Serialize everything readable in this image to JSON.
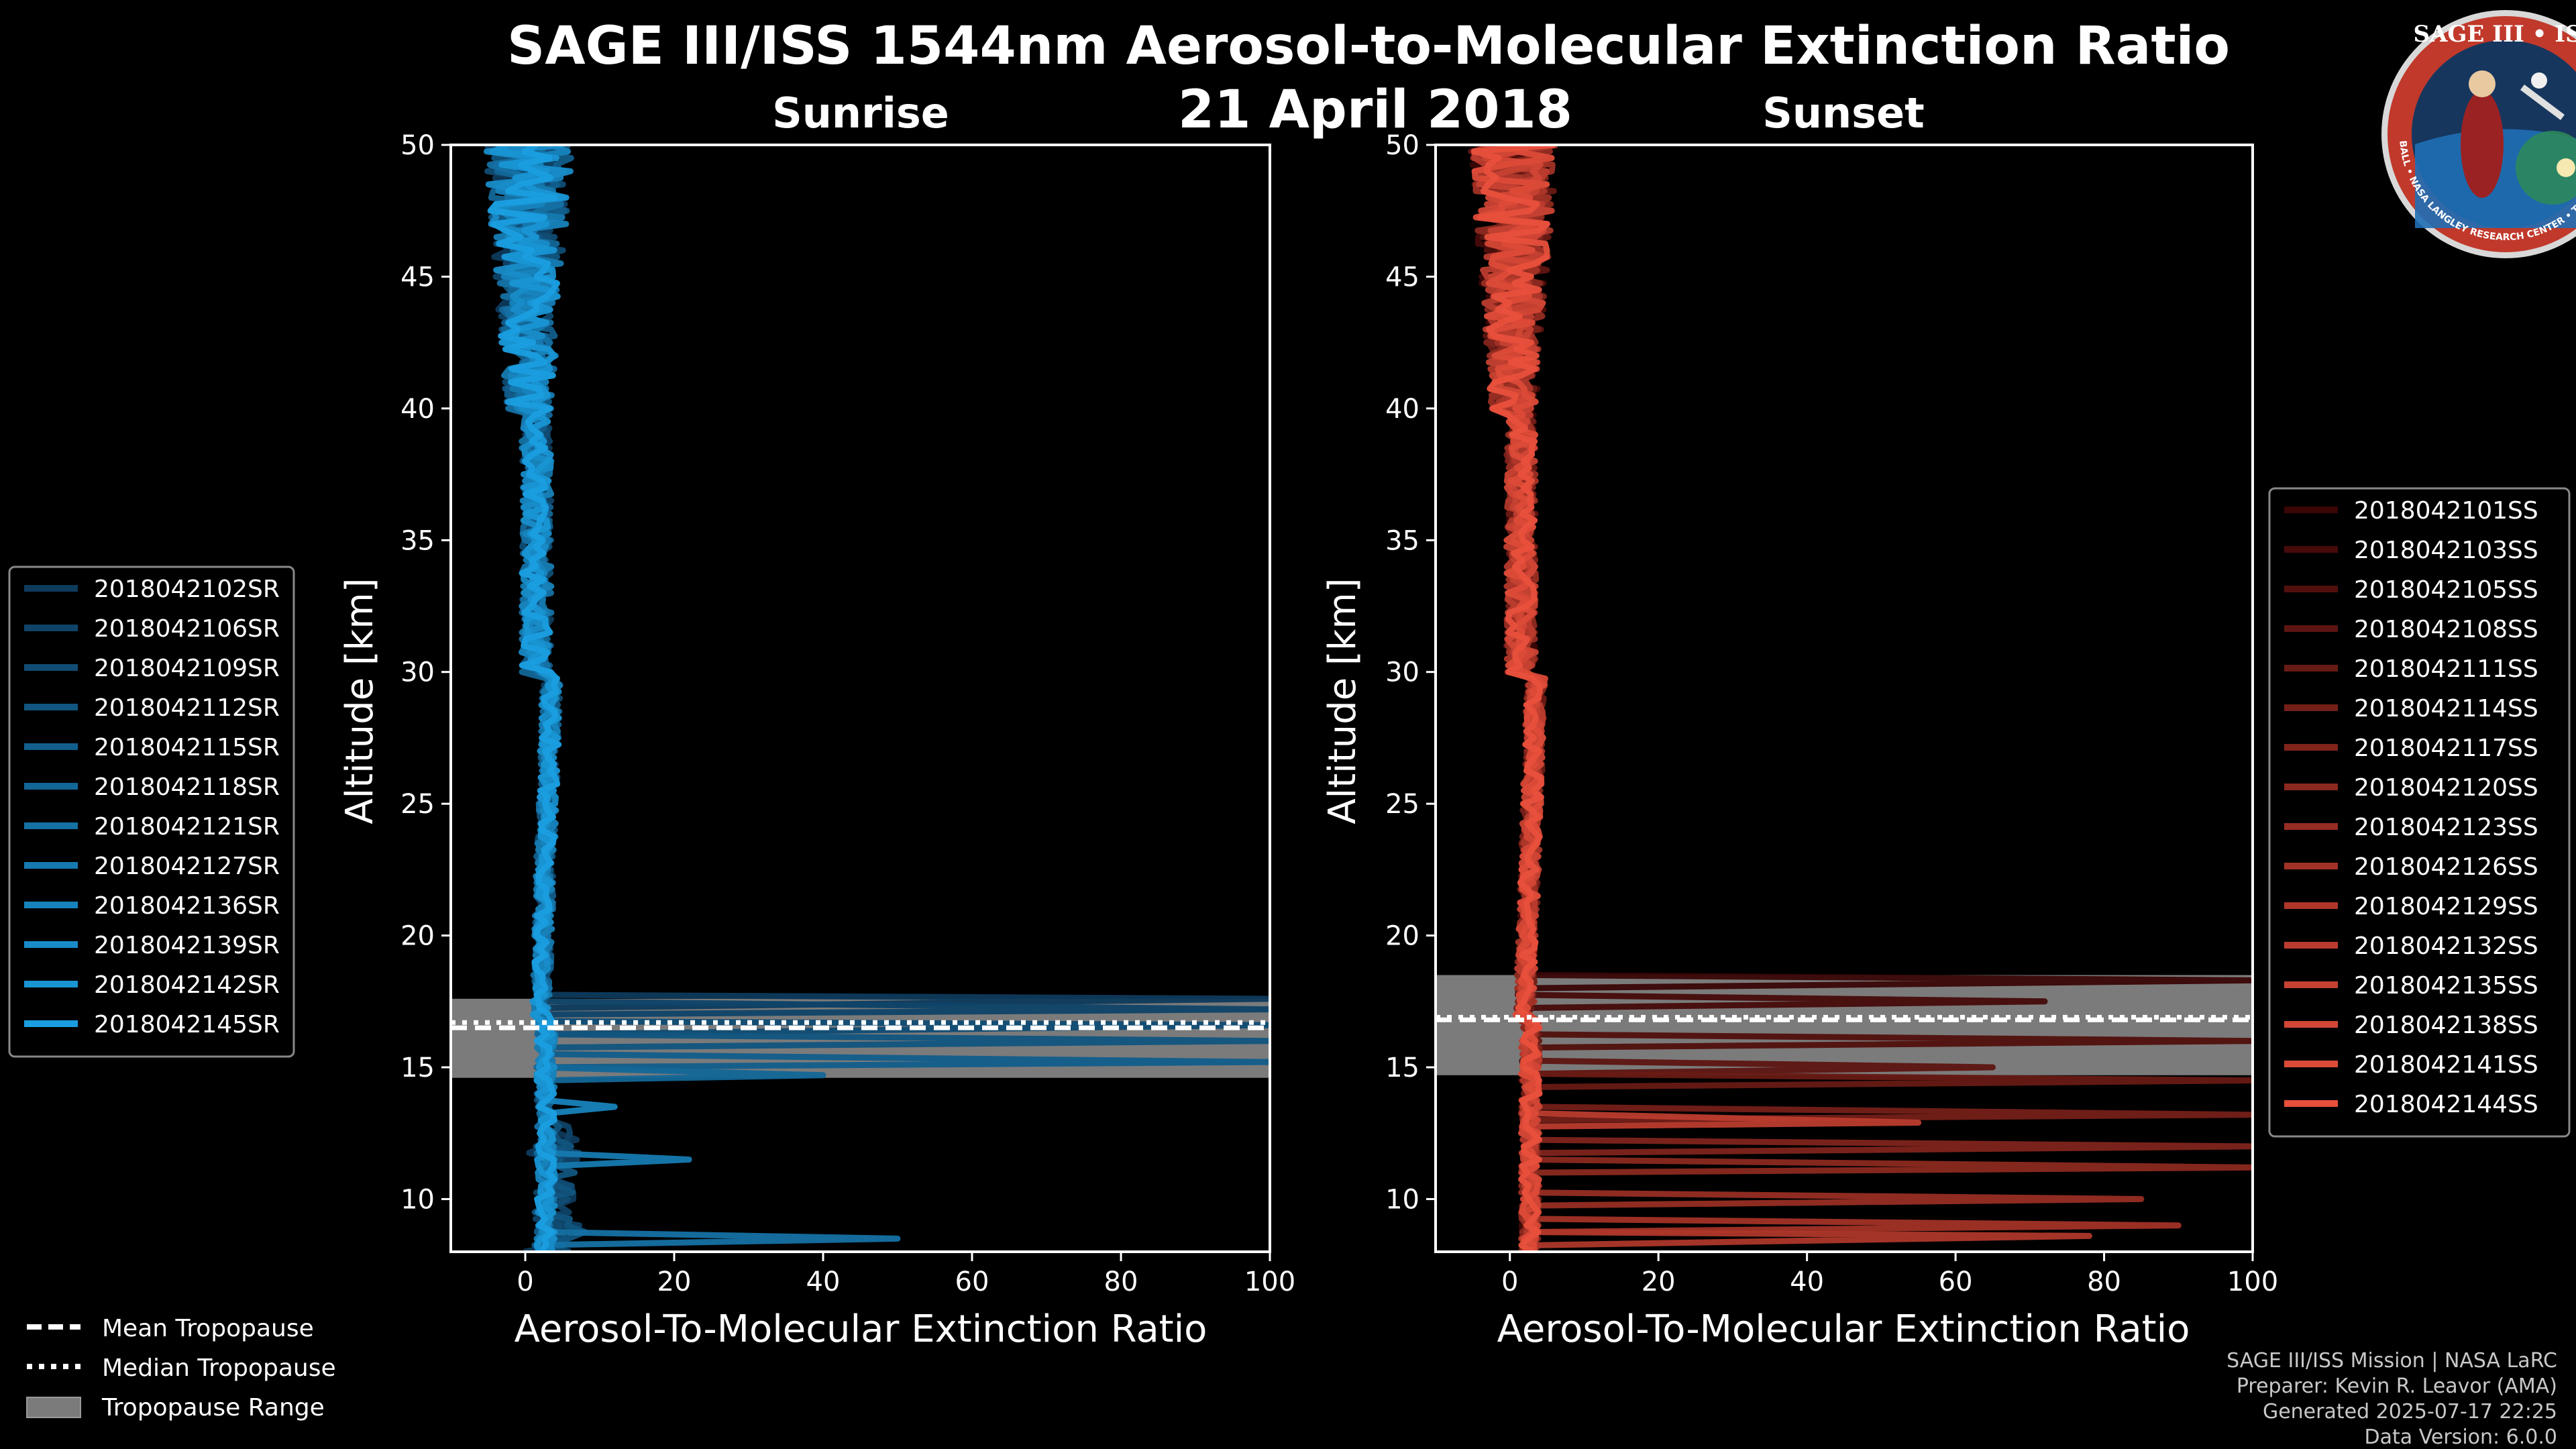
{
  "title": "SAGE III/ISS 1544nm Aerosol-to-Molecular Extinction Ratio",
  "date": "21 April 2018",
  "logo": {
    "top_text": "SAGE III • ISS",
    "ring_text": "BALL • NASA LANGLEY RESEARCH CENTER • TAS-I • ESA"
  },
  "footer": {
    "line1": "SAGE III/ISS Mission | NASA LaRC",
    "line2": "Preparer: Kevin R. Leavor (AMA)",
    "line3": "Generated 2025-07-17 22:25",
    "line4": "Data Version: 6.0.0"
  },
  "tropo_legend": {
    "mean": "Mean Tropopause",
    "median": "Median Tropopause",
    "range": "Tropopause Range"
  },
  "chart_data": [
    {
      "type": "line",
      "panel": "Sunrise",
      "title": "Sunrise",
      "xlabel": "Aerosol-To-Molecular Extinction Ratio",
      "ylabel": "Altitude [km]",
      "xlim": [
        -10,
        100
      ],
      "ylim": [
        8,
        50
      ],
      "xticks": [
        0,
        20,
        40,
        60,
        80,
        100
      ],
      "yticks": [
        10,
        15,
        20,
        25,
        30,
        35,
        40,
        45,
        50
      ],
      "legend_position": "left",
      "tropopause": {
        "mean": 16.5,
        "median": 16.7,
        "range": [
          14.6,
          17.6
        ]
      },
      "series_color_start": "#0e3a5c",
      "series_color_end": "#1a9ee0",
      "series": [
        {
          "name": "2018042102SR"
        },
        {
          "name": "2018042106SR"
        },
        {
          "name": "2018042109SR"
        },
        {
          "name": "2018042112SR"
        },
        {
          "name": "2018042115SR"
        },
        {
          "name": "2018042118SR"
        },
        {
          "name": "2018042121SR"
        },
        {
          "name": "2018042127SR"
        },
        {
          "name": "2018042136SR"
        },
        {
          "name": "2018042139SR"
        },
        {
          "name": "2018042142SR"
        },
        {
          "name": "2018042145SR"
        }
      ],
      "spikes": [
        {
          "alt": 17.6,
          "value": 100
        },
        {
          "alt": 17.2,
          "value": 100
        },
        {
          "alt": 16.6,
          "value": 100
        },
        {
          "alt": 16.0,
          "value": 100
        },
        {
          "alt": 15.2,
          "value": 100
        },
        {
          "alt": 14.7,
          "value": 40
        },
        {
          "alt": 8.5,
          "value": 50
        },
        {
          "alt": 11.5,
          "value": 22
        },
        {
          "alt": 13.5,
          "value": 12
        }
      ]
    },
    {
      "type": "line",
      "panel": "Sunset",
      "title": "Sunset",
      "xlabel": "Aerosol-To-Molecular Extinction Ratio",
      "ylabel": "Altitude [km]",
      "xlim": [
        -10,
        100
      ],
      "ylim": [
        8,
        50
      ],
      "xticks": [
        0,
        20,
        40,
        60,
        80,
        100
      ],
      "yticks": [
        10,
        15,
        20,
        25,
        30,
        35,
        40,
        45,
        50
      ],
      "legend_position": "right",
      "tropopause": {
        "mean": 16.8,
        "median": 16.9,
        "range": [
          14.7,
          18.5
        ]
      },
      "series_color_start": "#3a0606",
      "series_color_end": "#e8503c",
      "series": [
        {
          "name": "2018042101SS"
        },
        {
          "name": "2018042103SS"
        },
        {
          "name": "2018042105SS"
        },
        {
          "name": "2018042108SS"
        },
        {
          "name": "2018042111SS"
        },
        {
          "name": "2018042114SS"
        },
        {
          "name": "2018042117SS"
        },
        {
          "name": "2018042120SS"
        },
        {
          "name": "2018042123SS"
        },
        {
          "name": "2018042126SS"
        },
        {
          "name": "2018042129SS"
        },
        {
          "name": "2018042132SS"
        },
        {
          "name": "2018042135SS"
        },
        {
          "name": "2018042138SS"
        },
        {
          "name": "2018042141SS"
        },
        {
          "name": "2018042144SS"
        }
      ],
      "spikes": [
        {
          "alt": 18.3,
          "value": 100
        },
        {
          "alt": 17.5,
          "value": 72
        },
        {
          "alt": 16.0,
          "value": 100
        },
        {
          "alt": 15.0,
          "value": 65
        },
        {
          "alt": 14.5,
          "value": 100
        },
        {
          "alt": 13.2,
          "value": 100
        },
        {
          "alt": 12.0,
          "value": 100
        },
        {
          "alt": 11.2,
          "value": 100
        },
        {
          "alt": 10.0,
          "value": 85
        },
        {
          "alt": 9.0,
          "value": 90
        },
        {
          "alt": 8.6,
          "value": 78
        },
        {
          "alt": 12.9,
          "value": 55
        }
      ]
    }
  ]
}
